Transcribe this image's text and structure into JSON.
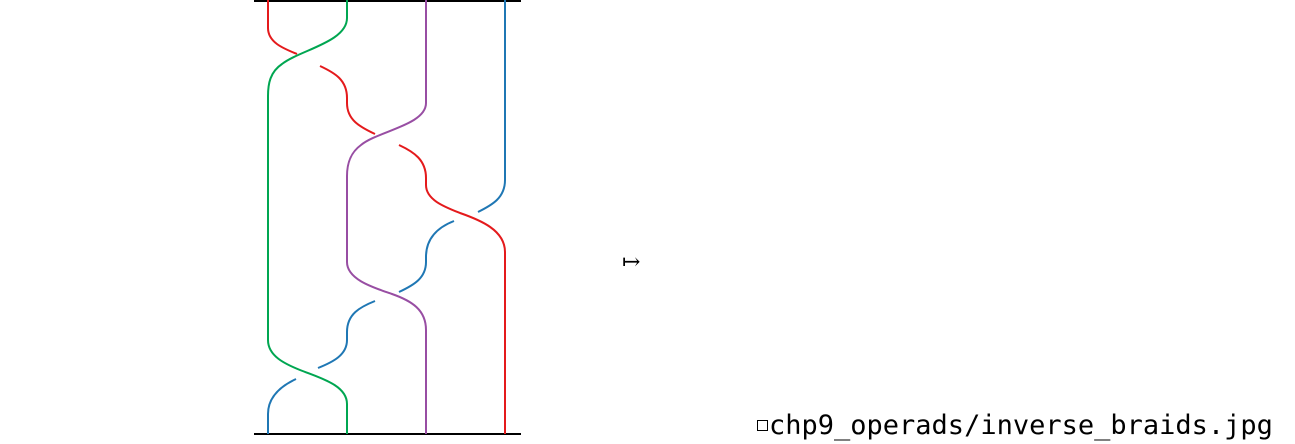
{
  "diagram": {
    "strand_colors": {
      "red": "#e41a1c",
      "green": "#00a651",
      "purple": "#984ea3",
      "blue": "#1f77b4"
    },
    "maps_to_symbol": "↦",
    "missing_image_text": "chp9_operads/inverse_braids.jpg"
  }
}
